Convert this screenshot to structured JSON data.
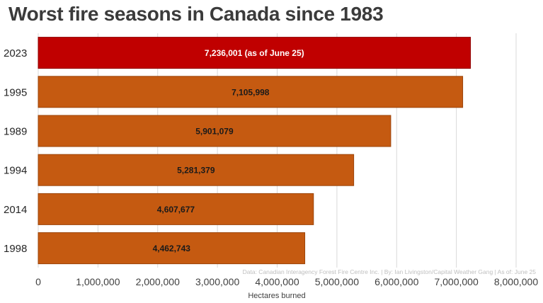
{
  "chart_data": {
    "type": "bar",
    "orientation": "horizontal",
    "title": "Worst fire seasons in Canada since 1983",
    "categories": [
      "2023",
      "1995",
      "1989",
      "1994",
      "2014",
      "1998"
    ],
    "values": [
      7236001,
      7105998,
      5901079,
      5281379,
      4607677,
      4462743
    ],
    "data_labels": [
      "7,236,001 (as of June 25)",
      "7,105,998",
      "5,901,079",
      "5,281,379",
      "4,607,677",
      "4,462,743"
    ],
    "xlabel": "Hectares burned",
    "ylabel": "",
    "xlim": [
      0,
      8000000
    ],
    "xticks": [
      0,
      1000000,
      2000000,
      3000000,
      4000000,
      5000000,
      6000000,
      7000000,
      8000000
    ],
    "xtick_labels": [
      "0",
      "1,000,000",
      "2,000,000",
      "3,000,000",
      "4,000,000",
      "5,000,000",
      "6,000,000",
      "7,000,000",
      "8,000,000"
    ],
    "grid": "vertical",
    "legend": "none",
    "source_note": "Data: Canadian Interagency Forest Fire Centre Inc. | By: Ian Livingston/Capital Weather Gang | As of: June 25",
    "colors": {
      "highlight": "#c00000",
      "bar": "#c55a11",
      "highlight_label": "#ffffff",
      "bar_label": "#1a1a1a",
      "grid": "#d9d9d9",
      "axis_text": "#404040",
      "source_text": "#bfbfbf"
    },
    "highlight_index": 0
  }
}
